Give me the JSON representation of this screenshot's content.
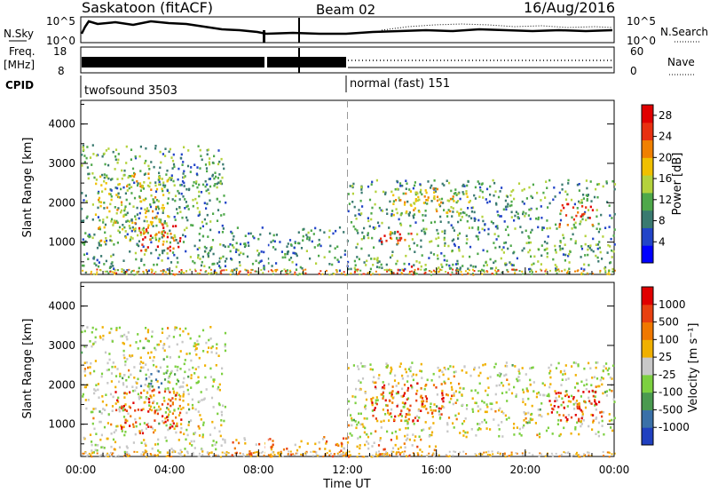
{
  "header": {
    "station": "Saskatoon (fitACF)",
    "beam": "Beam 02",
    "date": "16/Aug/2016"
  },
  "aux": {
    "nsky_label": "N.Sky",
    "nsky_ticks": [
      "10^5",
      "10^0"
    ],
    "nsearch_label": "N.Search",
    "freq_label": "Freq.",
    "freq_unit": "[MHz]",
    "freq_ticks": [
      "18",
      "8"
    ],
    "nave_ticks": [
      "60",
      "0"
    ],
    "nave_label": "Nave",
    "cpid_label": "CPID",
    "cpid_segments": [
      {
        "label": "twofsound 3503",
        "start_hour": 0,
        "end_hour": 12
      },
      {
        "label": "normal (fast) 151",
        "start_hour": 12,
        "end_hour": 24
      }
    ]
  },
  "chart_data": [
    {
      "type": "heatmap",
      "name": "power",
      "xlabel": "Time UT",
      "ylabel": "Slant Range [km]",
      "x_ticks": [
        "00:00",
        "04:00",
        "08:00",
        "12:00",
        "16:00",
        "20:00",
        "00:00"
      ],
      "xlim_hours": [
        0,
        24
      ],
      "ylim": [
        180,
        4600
      ],
      "y_ticks": [
        1000,
        2000,
        3000,
        4000
      ],
      "colorbar": {
        "label": "Power [dB]",
        "ticks": [
          "4",
          "8",
          "12",
          "16",
          "20",
          "24",
          "28"
        ],
        "range": [
          0,
          30
        ],
        "colors": [
          "#0000ff",
          "#2244c8",
          "#3a7a70",
          "#4ea84a",
          "#b4d23c",
          "#f0c000",
          "#f08000",
          "#e83010",
          "#e00000"
        ]
      },
      "regions": [
        {
          "t0": 0.0,
          "t1": 6.5,
          "r0": 300,
          "r1": 3500,
          "level": 0.35
        },
        {
          "t0": 0.5,
          "t1": 4.0,
          "r0": 1000,
          "r1": 2800,
          "level": 0.55
        },
        {
          "t0": 2.5,
          "t1": 4.5,
          "r0": 800,
          "r1": 1500,
          "level": 0.85
        },
        {
          "t0": 6.5,
          "t1": 12.0,
          "r0": 300,
          "r1": 1400,
          "level": 0.3
        },
        {
          "t0": 12.0,
          "t1": 24.0,
          "r0": 300,
          "r1": 2600,
          "level": 0.35
        },
        {
          "t0": 13.3,
          "t1": 15.0,
          "r0": 1000,
          "r1": 1400,
          "level": 0.8
        },
        {
          "t0": 14.0,
          "t1": 17.5,
          "r0": 1700,
          "r1": 2400,
          "level": 0.6
        },
        {
          "t0": 21.5,
          "t1": 23.0,
          "r0": 1400,
          "r1": 2000,
          "level": 0.85
        },
        {
          "t0": 14.0,
          "t1": 15.2,
          "r0": 300,
          "r1": 420,
          "level": 0.95
        }
      ]
    },
    {
      "type": "heatmap",
      "name": "velocity",
      "xlabel": "Time UT",
      "ylabel": "Slant Range [km]",
      "x_ticks": [
        "00:00",
        "04:00",
        "08:00",
        "12:00",
        "16:00",
        "20:00",
        "00:00"
      ],
      "xlim_hours": [
        0,
        24
      ],
      "ylim": [
        180,
        4600
      ],
      "y_ticks": [
        1000,
        2000,
        3000,
        4000
      ],
      "colorbar": {
        "label": "Velocity [m s⁻¹]",
        "ticks": [
          "1000",
          "500",
          "100",
          "25",
          "-25",
          "-100",
          "-500",
          "-1000"
        ],
        "colors": [
          "#2040c0",
          "#3a70a8",
          "#4a9a50",
          "#7cd040",
          "#c8c8c8",
          "#f0b000",
          "#f07800",
          "#e84010",
          "#e00000"
        ]
      },
      "regions": [
        {
          "t0": 0.0,
          "t1": 6.5,
          "r0": 300,
          "r1": 3500,
          "level": 0.5
        },
        {
          "t0": 1.5,
          "t1": 4.5,
          "r0": 800,
          "r1": 1900,
          "level": 0.8
        },
        {
          "t0": 2.5,
          "t1": 4.5,
          "r0": 1900,
          "r1": 2400,
          "level": 0.3
        },
        {
          "t0": 6.5,
          "t1": 16.0,
          "r0": 200,
          "r1": 700,
          "level": 0.68
        },
        {
          "t0": 12.0,
          "t1": 24.0,
          "r0": 700,
          "r1": 2600,
          "level": 0.5
        },
        {
          "t0": 13.0,
          "t1": 17.0,
          "r0": 1100,
          "r1": 2100,
          "level": 0.8
        },
        {
          "t0": 21.0,
          "t1": 23.5,
          "r0": 1100,
          "r1": 1900,
          "level": 0.86
        }
      ]
    }
  ]
}
